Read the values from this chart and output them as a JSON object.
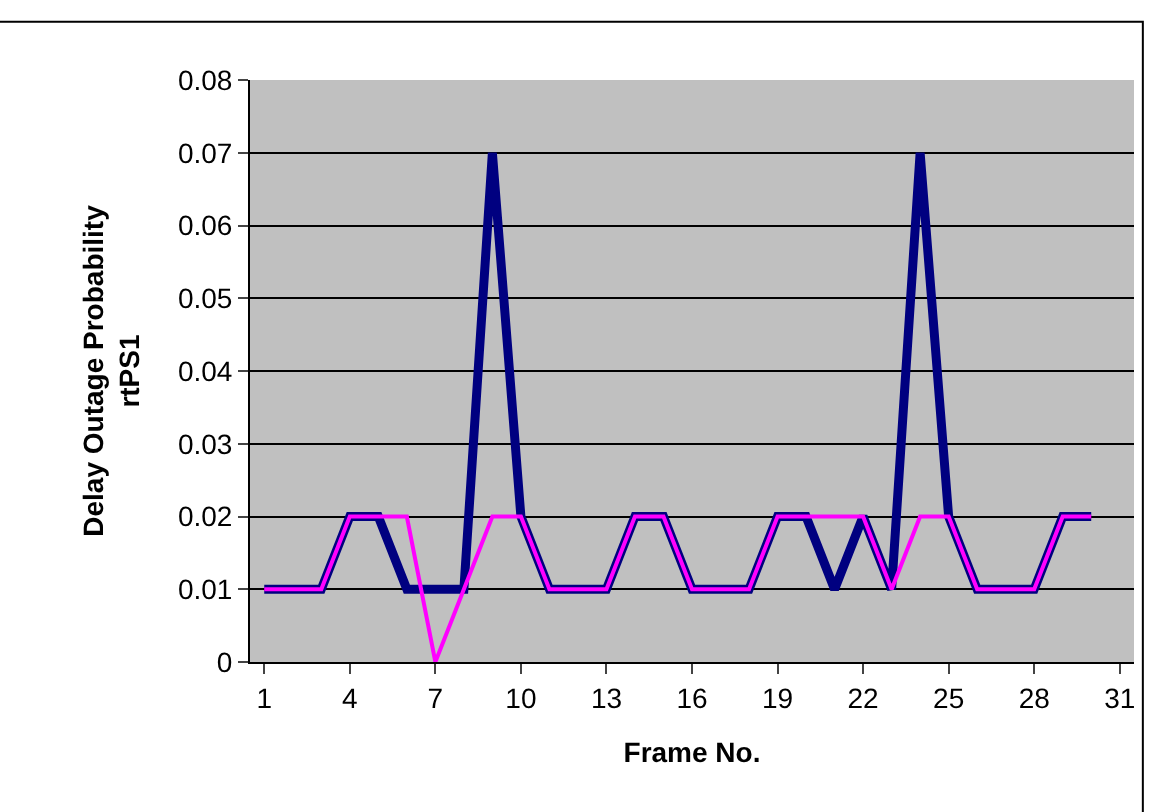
{
  "chart_data": {
    "type": "line",
    "xlabel": "Frame No.",
    "ylabel": "Delay Outage Probability\nrtPS1",
    "categories": [
      "1",
      null,
      null,
      "4",
      null,
      null,
      "7",
      null,
      null,
      "10",
      null,
      null,
      "13",
      null,
      null,
      "16",
      null,
      null,
      "19",
      null,
      null,
      "22",
      null,
      null,
      "25",
      null,
      null,
      "28",
      null,
      null,
      "31"
    ],
    "series": [
      {
        "color": "#000080",
        "values": [
          0.01,
          0.01,
          0.01,
          0.02,
          0.02,
          0.01,
          0.01,
          0.01,
          0.07,
          0.02,
          0.01,
          0.01,
          0.01,
          0.02,
          0.02,
          0.01,
          0.01,
          0.01,
          0.02,
          0.02,
          0.01,
          0.02,
          0.01,
          0.07,
          0.02,
          0.01,
          0.01,
          0.01,
          0.02,
          0.02,
          null
        ]
      },
      {
        "color": "#ff00ff",
        "values": [
          0.01,
          0.01,
          0.01,
          0.02,
          0.02,
          0.02,
          0.0,
          0.01,
          0.02,
          0.02,
          0.01,
          0.01,
          0.01,
          0.02,
          0.02,
          0.01,
          0.01,
          0.01,
          0.02,
          0.02,
          0.02,
          0.02,
          0.01,
          0.02,
          0.02,
          0.01,
          0.01,
          0.01,
          0.02,
          0.02,
          null
        ]
      }
    ],
    "ylim": [
      0,
      0.08
    ],
    "yticks": [
      0,
      0.01,
      0.02,
      0.03,
      0.04,
      0.05,
      0.06,
      0.07,
      0.08
    ],
    "grid": "y",
    "marker": "none",
    "line_style": "solid"
  }
}
